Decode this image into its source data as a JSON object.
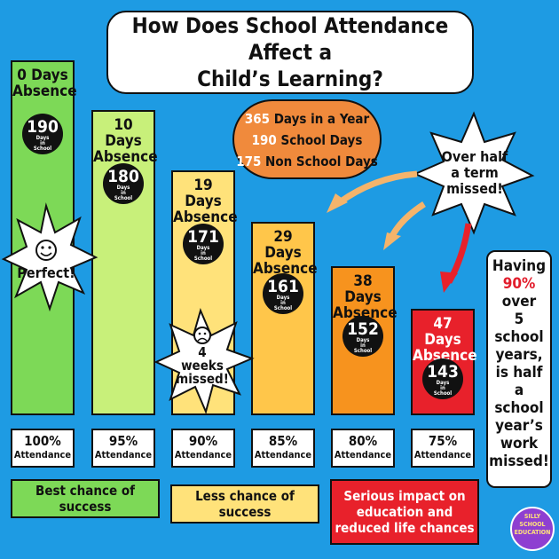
{
  "title": {
    "line1": "How Does School Attendance Affect a",
    "line2": "Child’s Learning?"
  },
  "days_word": "Days",
  "in_word": "in",
  "school_word": "School",
  "bars": [
    {
      "absence": "0 Days",
      "absence2": "Absence",
      "days": "190",
      "percent": "100%",
      "attendance": "Attendance",
      "color": "#7dd957"
    },
    {
      "absence": "10 Days",
      "absence2": "Absence",
      "days": "180",
      "percent": "95%",
      "attendance": "Attendance",
      "color": "#c8f07a"
    },
    {
      "absence": "19 Days",
      "absence2": "Absence",
      "days": "171",
      "percent": "90%",
      "attendance": "Attendance",
      "color": "#ffe27a"
    },
    {
      "absence": "29 Days",
      "absence2": "Absence",
      "days": "161",
      "percent": "85%",
      "attendance": "Attendance",
      "color": "#ffc64a"
    },
    {
      "absence": "38 Days",
      "absence2": "Absence",
      "days": "152",
      "percent": "80%",
      "attendance": "Attendance",
      "color": "#f7931e"
    },
    {
      "absence": "47 Days",
      "absence2": "Absence",
      "days": "143",
      "percent": "75%",
      "attendance": "Attendance",
      "color": "#e8212b"
    }
  ],
  "oval": {
    "l1n": "365",
    "l1t": " Days in a Year",
    "l2n": "190",
    "l2t": " School Days",
    "l3n": "175",
    "l3t": " Non School Days"
  },
  "stars": {
    "perfect": "Perfect!",
    "weeks1": "4",
    "weeks2": "weeks",
    "weeks3": "missed!",
    "half1": "Over half",
    "half2": "a term",
    "half3": "missed!"
  },
  "side": {
    "l1": "Having",
    "l2": "90%",
    "l3": "over",
    "l4": "5 school",
    "l5": "years,",
    "l6": "is half",
    "l7": "a school",
    "l8": "year’s",
    "l9": "work",
    "l10": "missed!"
  },
  "bands": {
    "green": "Best chance of success",
    "yellow": "Less chance of success",
    "red1": "Serious impact on",
    "red2": "education and",
    "red3": "reduced life chances"
  },
  "logo": {
    "l1": "SILLY",
    "l2": "SCHOOL",
    "l3": "EDUCATION"
  },
  "icons": {
    "smile": "smiley-face-icon",
    "sad": "sad-face-icon",
    "arrow": "curved-arrow-icon"
  },
  "colors": {
    "background": "#1e9be3",
    "green": "#7dd957",
    "yellow": "#ffe27a",
    "red": "#e8212b",
    "orange": "#f08a3c"
  }
}
